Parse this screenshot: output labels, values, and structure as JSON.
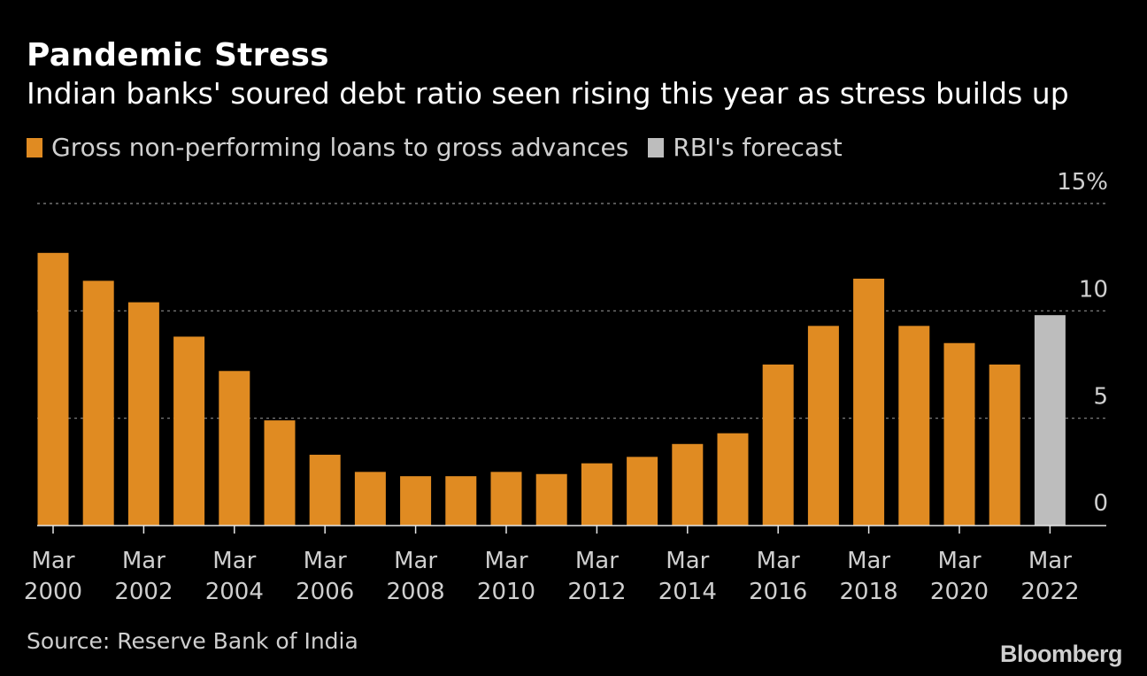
{
  "header": {
    "title": "Pandemic Stress",
    "subtitle": "Indian banks' soured debt ratio seen rising this year as stress builds up"
  },
  "legend": {
    "items": [
      {
        "label": "Gross non-performing loans to gross advances",
        "color": "#e08b22"
      },
      {
        "label": "RBI's forecast",
        "color": "#bdbdbd"
      }
    ]
  },
  "footer": {
    "source": "Source: Reserve Bank of India",
    "brand": "Bloomberg"
  },
  "chart_data": {
    "type": "bar",
    "title": "Pandemic Stress",
    "subtitle": "Indian banks' soured debt ratio seen rising this year as stress builds up",
    "xlabel": "",
    "ylabel": "",
    "ylim": [
      0,
      15
    ],
    "yticks": [
      {
        "value": 0,
        "label": "0"
      },
      {
        "value": 5,
        "label": "5"
      },
      {
        "value": 10,
        "label": "10"
      },
      {
        "value": 15,
        "label": "15%"
      }
    ],
    "grid": true,
    "categories": [
      "Mar 2000",
      "Mar 2001",
      "Mar 2002",
      "Mar 2003",
      "Mar 2004",
      "Mar 2005",
      "Mar 2006",
      "Mar 2007",
      "Mar 2008",
      "Mar 2009",
      "Mar 2010",
      "Mar 2011",
      "Mar 2012",
      "Mar 2013",
      "Mar 2014",
      "Mar 2015",
      "Mar 2016",
      "Mar 2017",
      "Mar 2018",
      "Mar 2019",
      "Mar 2020",
      "Mar 2021",
      "Mar 2022"
    ],
    "x_tick_labels": [
      {
        "index": 0,
        "line1": "Mar",
        "line2": "2000"
      },
      {
        "index": 2,
        "line1": "Mar",
        "line2": "2002"
      },
      {
        "index": 4,
        "line1": "Mar",
        "line2": "2004"
      },
      {
        "index": 6,
        "line1": "Mar",
        "line2": "2006"
      },
      {
        "index": 8,
        "line1": "Mar",
        "line2": "2008"
      },
      {
        "index": 10,
        "line1": "Mar",
        "line2": "2010"
      },
      {
        "index": 12,
        "line1": "Mar",
        "line2": "2012"
      },
      {
        "index": 14,
        "line1": "Mar",
        "line2": "2014"
      },
      {
        "index": 16,
        "line1": "Mar",
        "line2": "2016"
      },
      {
        "index": 18,
        "line1": "Mar",
        "line2": "2018"
      },
      {
        "index": 20,
        "line1": "Mar",
        "line2": "2020"
      },
      {
        "index": 22,
        "line1": "Mar",
        "line2": "2022"
      }
    ],
    "series": [
      {
        "name": "Gross non-performing loans to gross advances",
        "color": "#e08b22",
        "values": [
          12.7,
          11.4,
          10.4,
          8.8,
          7.2,
          4.9,
          3.3,
          2.5,
          2.3,
          2.3,
          2.5,
          2.4,
          2.9,
          3.2,
          3.8,
          4.3,
          7.5,
          9.3,
          11.5,
          9.3,
          8.5,
          7.5,
          null
        ]
      },
      {
        "name": "RBI's forecast",
        "color": "#bdbdbd",
        "values": [
          null,
          null,
          null,
          null,
          null,
          null,
          null,
          null,
          null,
          null,
          null,
          null,
          null,
          null,
          null,
          null,
          null,
          null,
          null,
          null,
          null,
          null,
          9.8
        ]
      }
    ]
  }
}
